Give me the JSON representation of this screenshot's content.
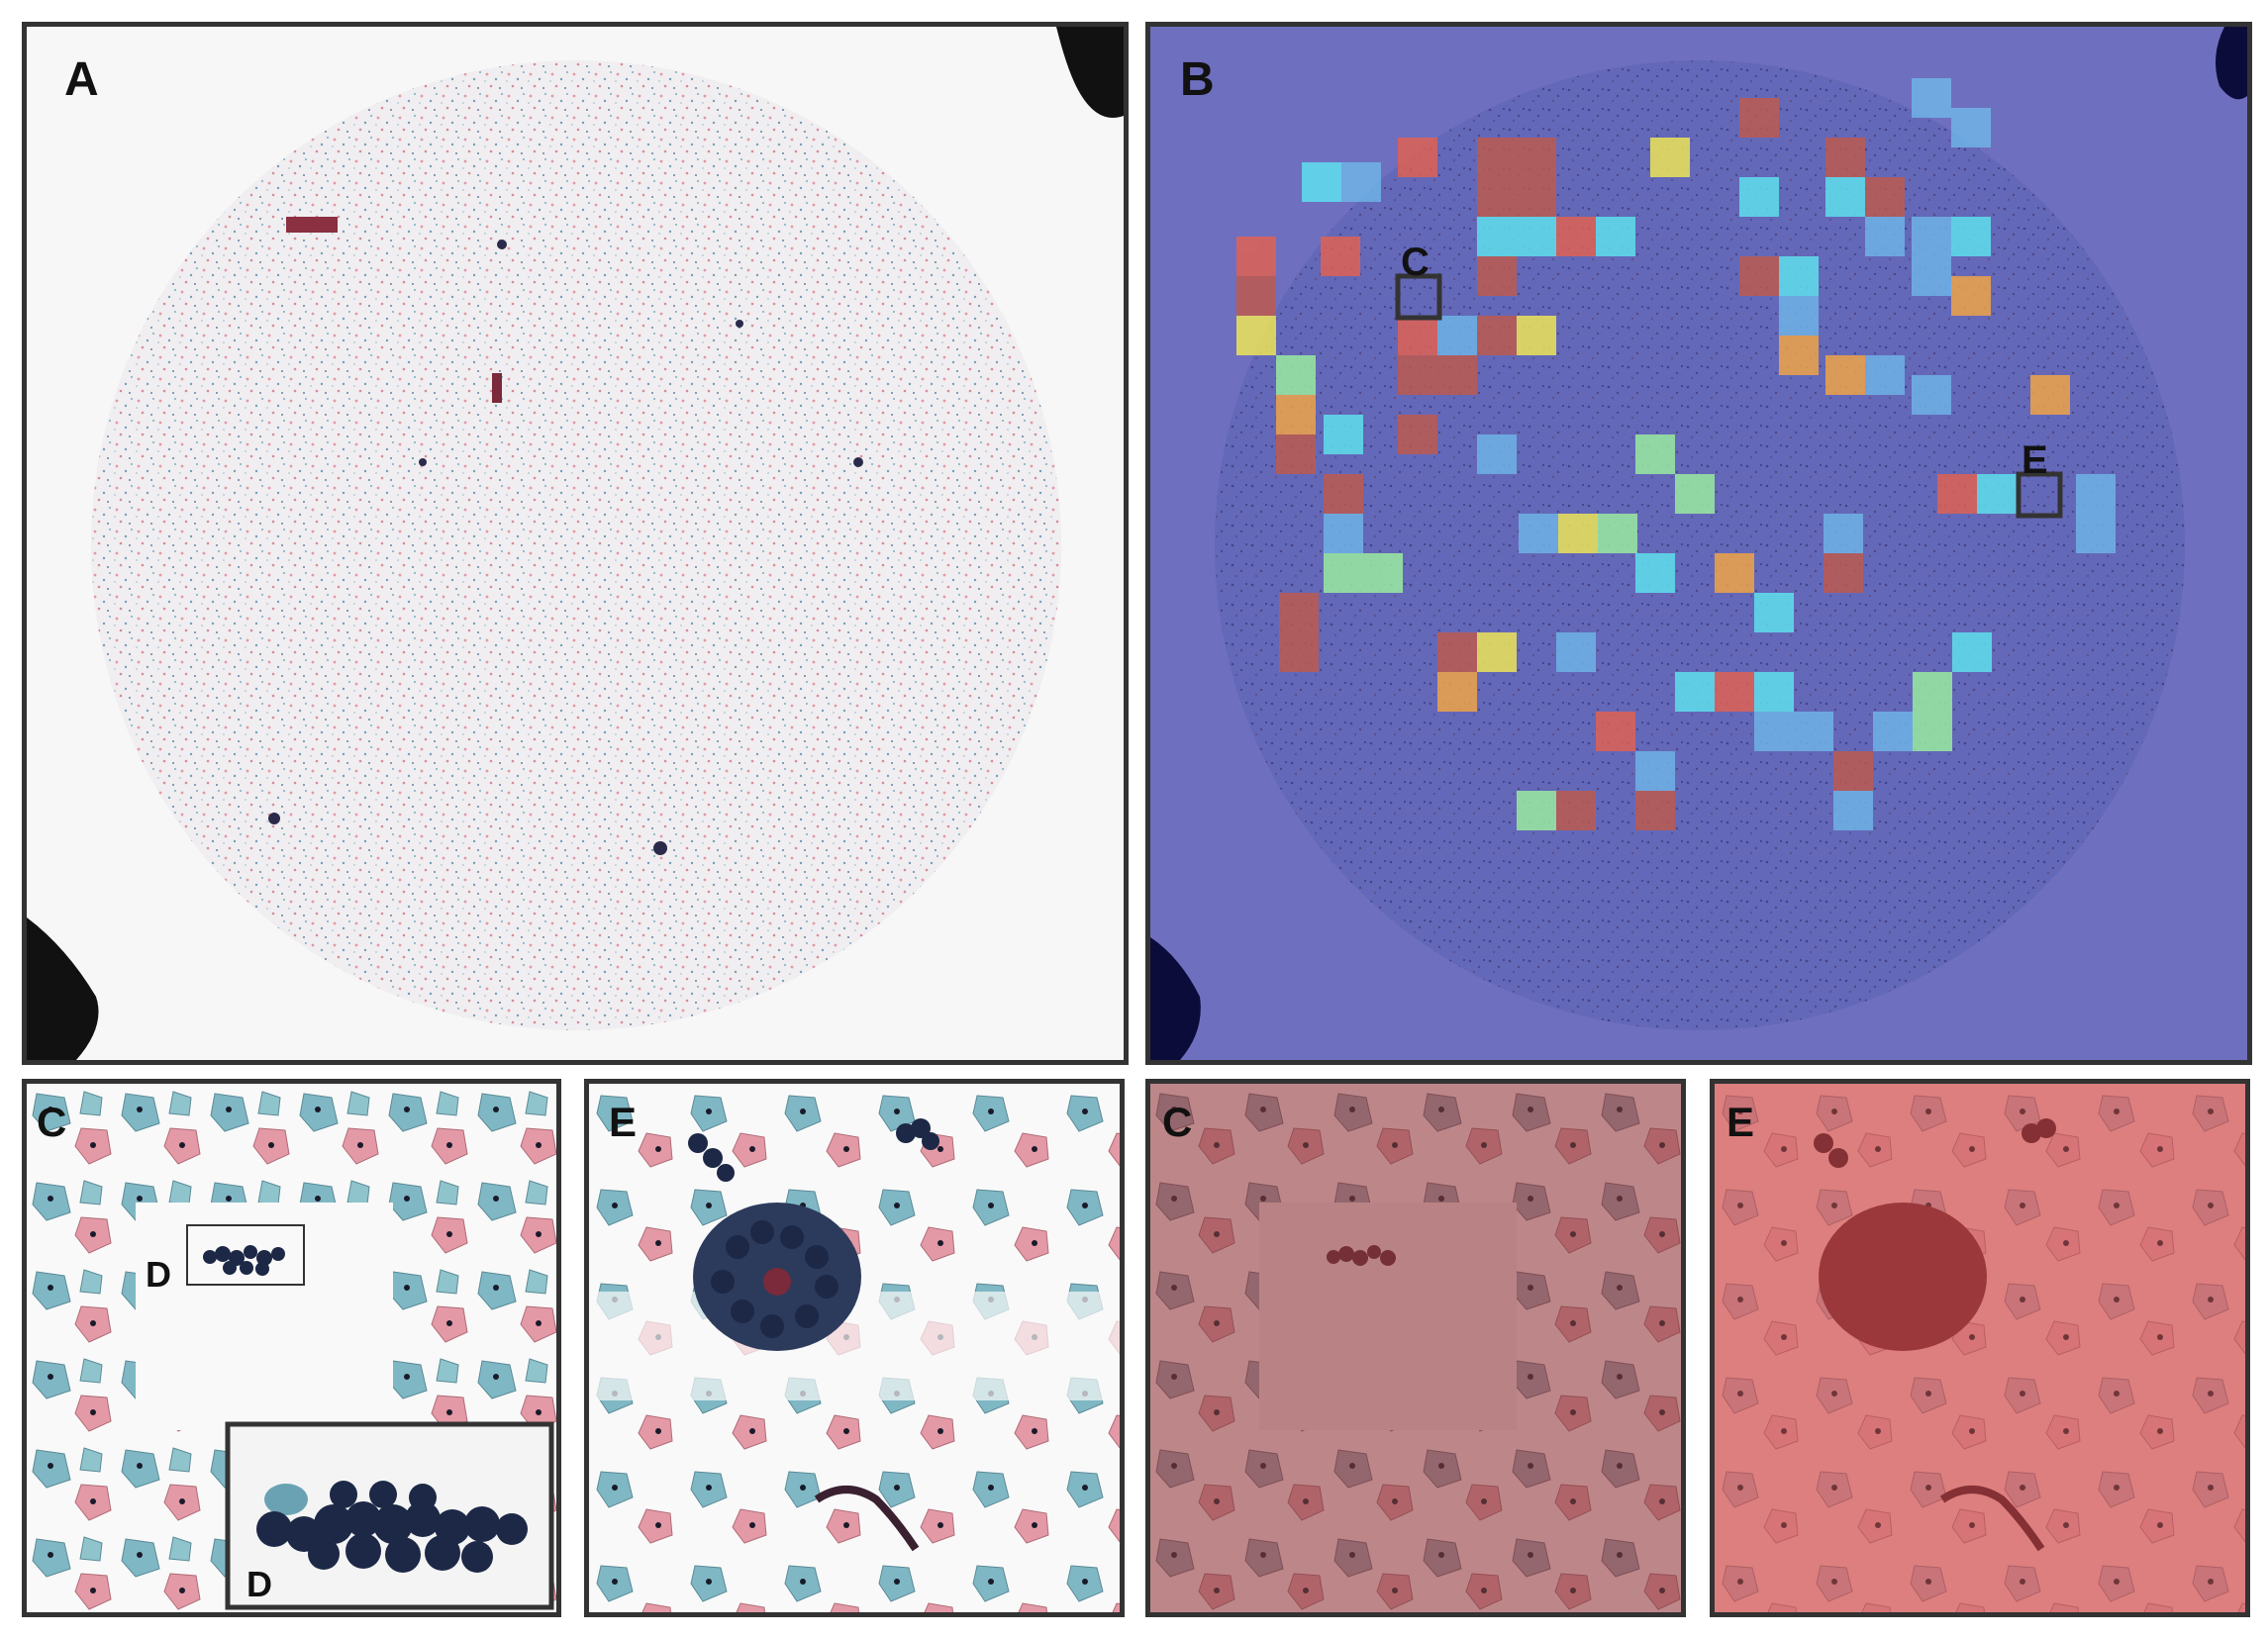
{
  "panels": {
    "a": {
      "label": "A"
    },
    "b": {
      "label": "B",
      "marker_c": "C",
      "marker_e": "E"
    },
    "c": {
      "label": "C",
      "marker_d": "D",
      "inset_label": "D"
    },
    "e": {
      "label": "E"
    },
    "c2": {
      "label": "C"
    },
    "e2": {
      "label": "E"
    }
  },
  "colors": {
    "border": "#333333",
    "slide_background": "#f7f7f7",
    "heatmap_background": "#6f6fbf",
    "attention_overlay_c": "#a75a5a",
    "attention_overlay_e": "#d86a6a",
    "cell_blue": "#7fb8c4",
    "cell_pink": "#e39aa6",
    "cluster_dark": "#1c2846"
  },
  "heatmap_tiles": {
    "palette": [
      "#6fb6e8",
      "#5fe5f0",
      "#9cf0a0",
      "#f2ea55",
      "#f5a544",
      "#e46150",
      "#c05a4c"
    ],
    "levels": [
      [
        5,
        5,
        0,
        0,
        0,
        0,
        0,
        0,
        0,
        0,
        0,
        0,
        0,
        0,
        0
      ],
      [
        5,
        0,
        0,
        5,
        0,
        1,
        0,
        0,
        0,
        0,
        0,
        0,
        0,
        0,
        0
      ],
      [
        3,
        0,
        0,
        5,
        0,
        0,
        0,
        0,
        0,
        0,
        0,
        0,
        0,
        0,
        0
      ]
    ]
  }
}
